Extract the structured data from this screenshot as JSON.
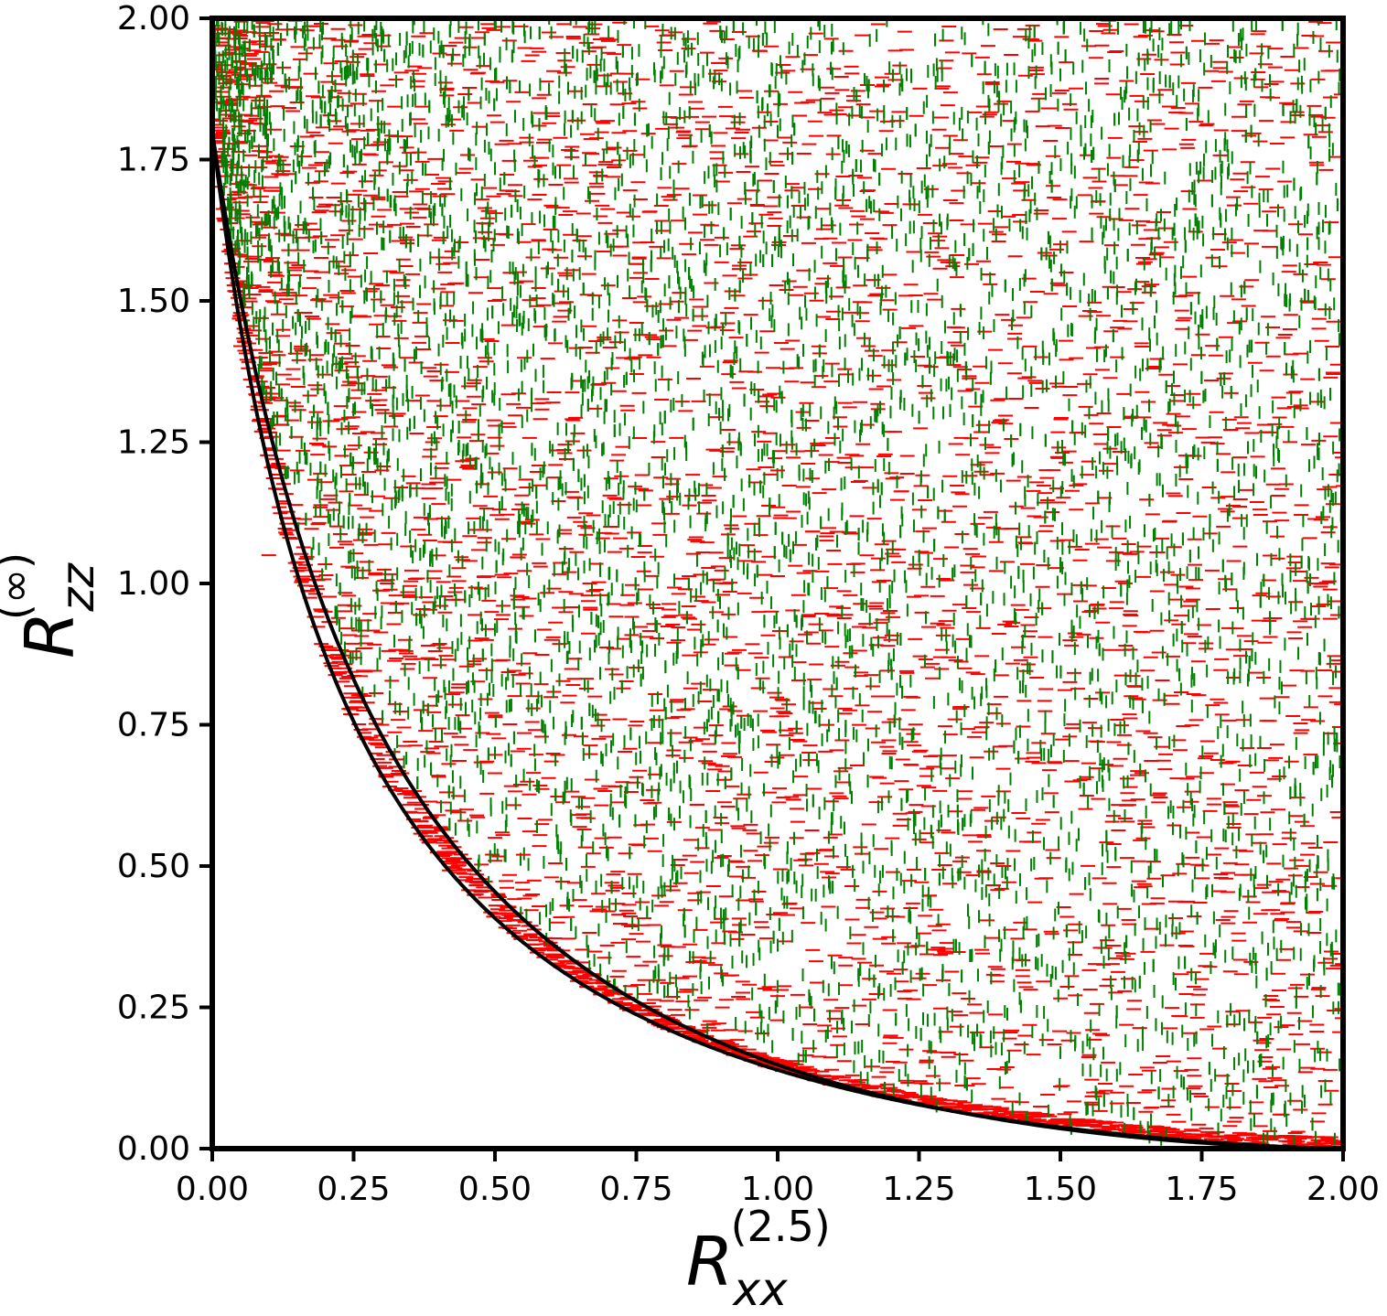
{
  "chart_data": {
    "type": "scatter",
    "title": "",
    "xlabel": {
      "base": "R",
      "sub": "xx",
      "sup": "(2.5)"
    },
    "ylabel": {
      "base": "R",
      "sub": "zz",
      "sup": "(∞)"
    },
    "xlim": [
      0.0,
      2.0
    ],
    "ylim": [
      0.0,
      2.0
    ],
    "xticks": [
      "0.00",
      "0.25",
      "0.50",
      "0.75",
      "1.00",
      "1.25",
      "1.50",
      "1.75",
      "2.00"
    ],
    "yticks": [
      "0.00",
      "0.25",
      "0.50",
      "0.75",
      "1.00",
      "1.25",
      "1.50",
      "1.75",
      "2.00"
    ],
    "grid": false,
    "legend": "none",
    "series": [
      {
        "marker": "horizontal-dash",
        "color": "#ff0000",
        "description_points": "dense cloud filling region above the lower boundary curve, extending slightly below the upper boundary curve",
        "sample_points": [
          [
            0.05,
            1.42
          ],
          [
            0.1,
            1.05
          ],
          [
            0.15,
            1.2
          ],
          [
            0.2,
            0.95
          ],
          [
            0.25,
            0.88
          ],
          [
            0.3,
            0.75
          ],
          [
            0.35,
            0.72
          ],
          [
            0.4,
            0.66
          ],
          [
            0.45,
            0.6
          ],
          [
            0.5,
            0.55
          ],
          [
            0.55,
            0.52
          ],
          [
            0.6,
            0.48
          ],
          [
            0.65,
            0.44
          ],
          [
            0.7,
            0.42
          ],
          [
            0.75,
            0.38
          ],
          [
            0.8,
            0.36
          ],
          [
            0.85,
            0.33
          ],
          [
            0.9,
            0.31
          ],
          [
            0.95,
            0.29
          ],
          [
            1.0,
            0.27
          ],
          [
            1.05,
            0.25
          ],
          [
            1.1,
            0.23
          ],
          [
            1.15,
            0.22
          ],
          [
            1.2,
            0.2
          ],
          [
            1.3,
            0.17
          ],
          [
            1.4,
            0.14
          ],
          [
            1.5,
            0.11
          ],
          [
            1.6,
            0.08
          ],
          [
            1.7,
            0.06
          ],
          [
            1.8,
            0.04
          ],
          [
            1.9,
            0.02
          ],
          [
            0.3,
            1.2
          ],
          [
            0.5,
            1.5
          ],
          [
            0.8,
            1.7
          ],
          [
            1.0,
            1.2
          ],
          [
            1.2,
            0.9
          ],
          [
            1.5,
            1.6
          ],
          [
            1.7,
            1.3
          ],
          [
            1.9,
            1.85
          ],
          [
            1.95,
            1.0
          ],
          [
            0.6,
            0.9
          ],
          [
            1.4,
            0.5
          ]
        ]
      },
      {
        "marker": "vertical-dash",
        "color": "#008000",
        "description_points": "dense cloud filling region above the upper boundary curve",
        "sample_points": [
          [
            0.02,
            1.85
          ],
          [
            0.05,
            1.9
          ],
          [
            0.1,
            1.6
          ],
          [
            0.15,
            1.4
          ],
          [
            0.2,
            1.2
          ],
          [
            0.25,
            1.05
          ],
          [
            0.3,
            0.95
          ],
          [
            0.4,
            0.8
          ],
          [
            0.5,
            0.7
          ],
          [
            0.6,
            0.6
          ],
          [
            0.7,
            0.52
          ],
          [
            0.8,
            0.46
          ],
          [
            0.9,
            0.4
          ],
          [
            1.0,
            0.36
          ],
          [
            1.1,
            0.32
          ],
          [
            1.2,
            0.28
          ],
          [
            1.3,
            0.24
          ],
          [
            1.4,
            0.2
          ],
          [
            1.5,
            0.17
          ],
          [
            1.6,
            0.13
          ],
          [
            1.7,
            0.1
          ],
          [
            1.8,
            0.08
          ],
          [
            1.9,
            0.05
          ],
          [
            0.5,
            1.9
          ],
          [
            1.0,
            1.8
          ],
          [
            1.5,
            1.9
          ],
          [
            1.9,
            1.5
          ],
          [
            0.8,
            1.1
          ],
          [
            1.3,
            1.4
          ],
          [
            1.7,
            0.9
          ]
        ]
      }
    ],
    "curves": [
      {
        "name": "",
        "color": "#000000",
        "formula": "upper_boundary",
        "description": "upper black curve from (0, 1.8) to (2, 0)"
      },
      {
        "name": "",
        "color": "#000000",
        "formula": "lower_boundary",
        "description": "lower black curve from (0, 1.8) to (2, 0), slightly below"
      }
    ]
  }
}
